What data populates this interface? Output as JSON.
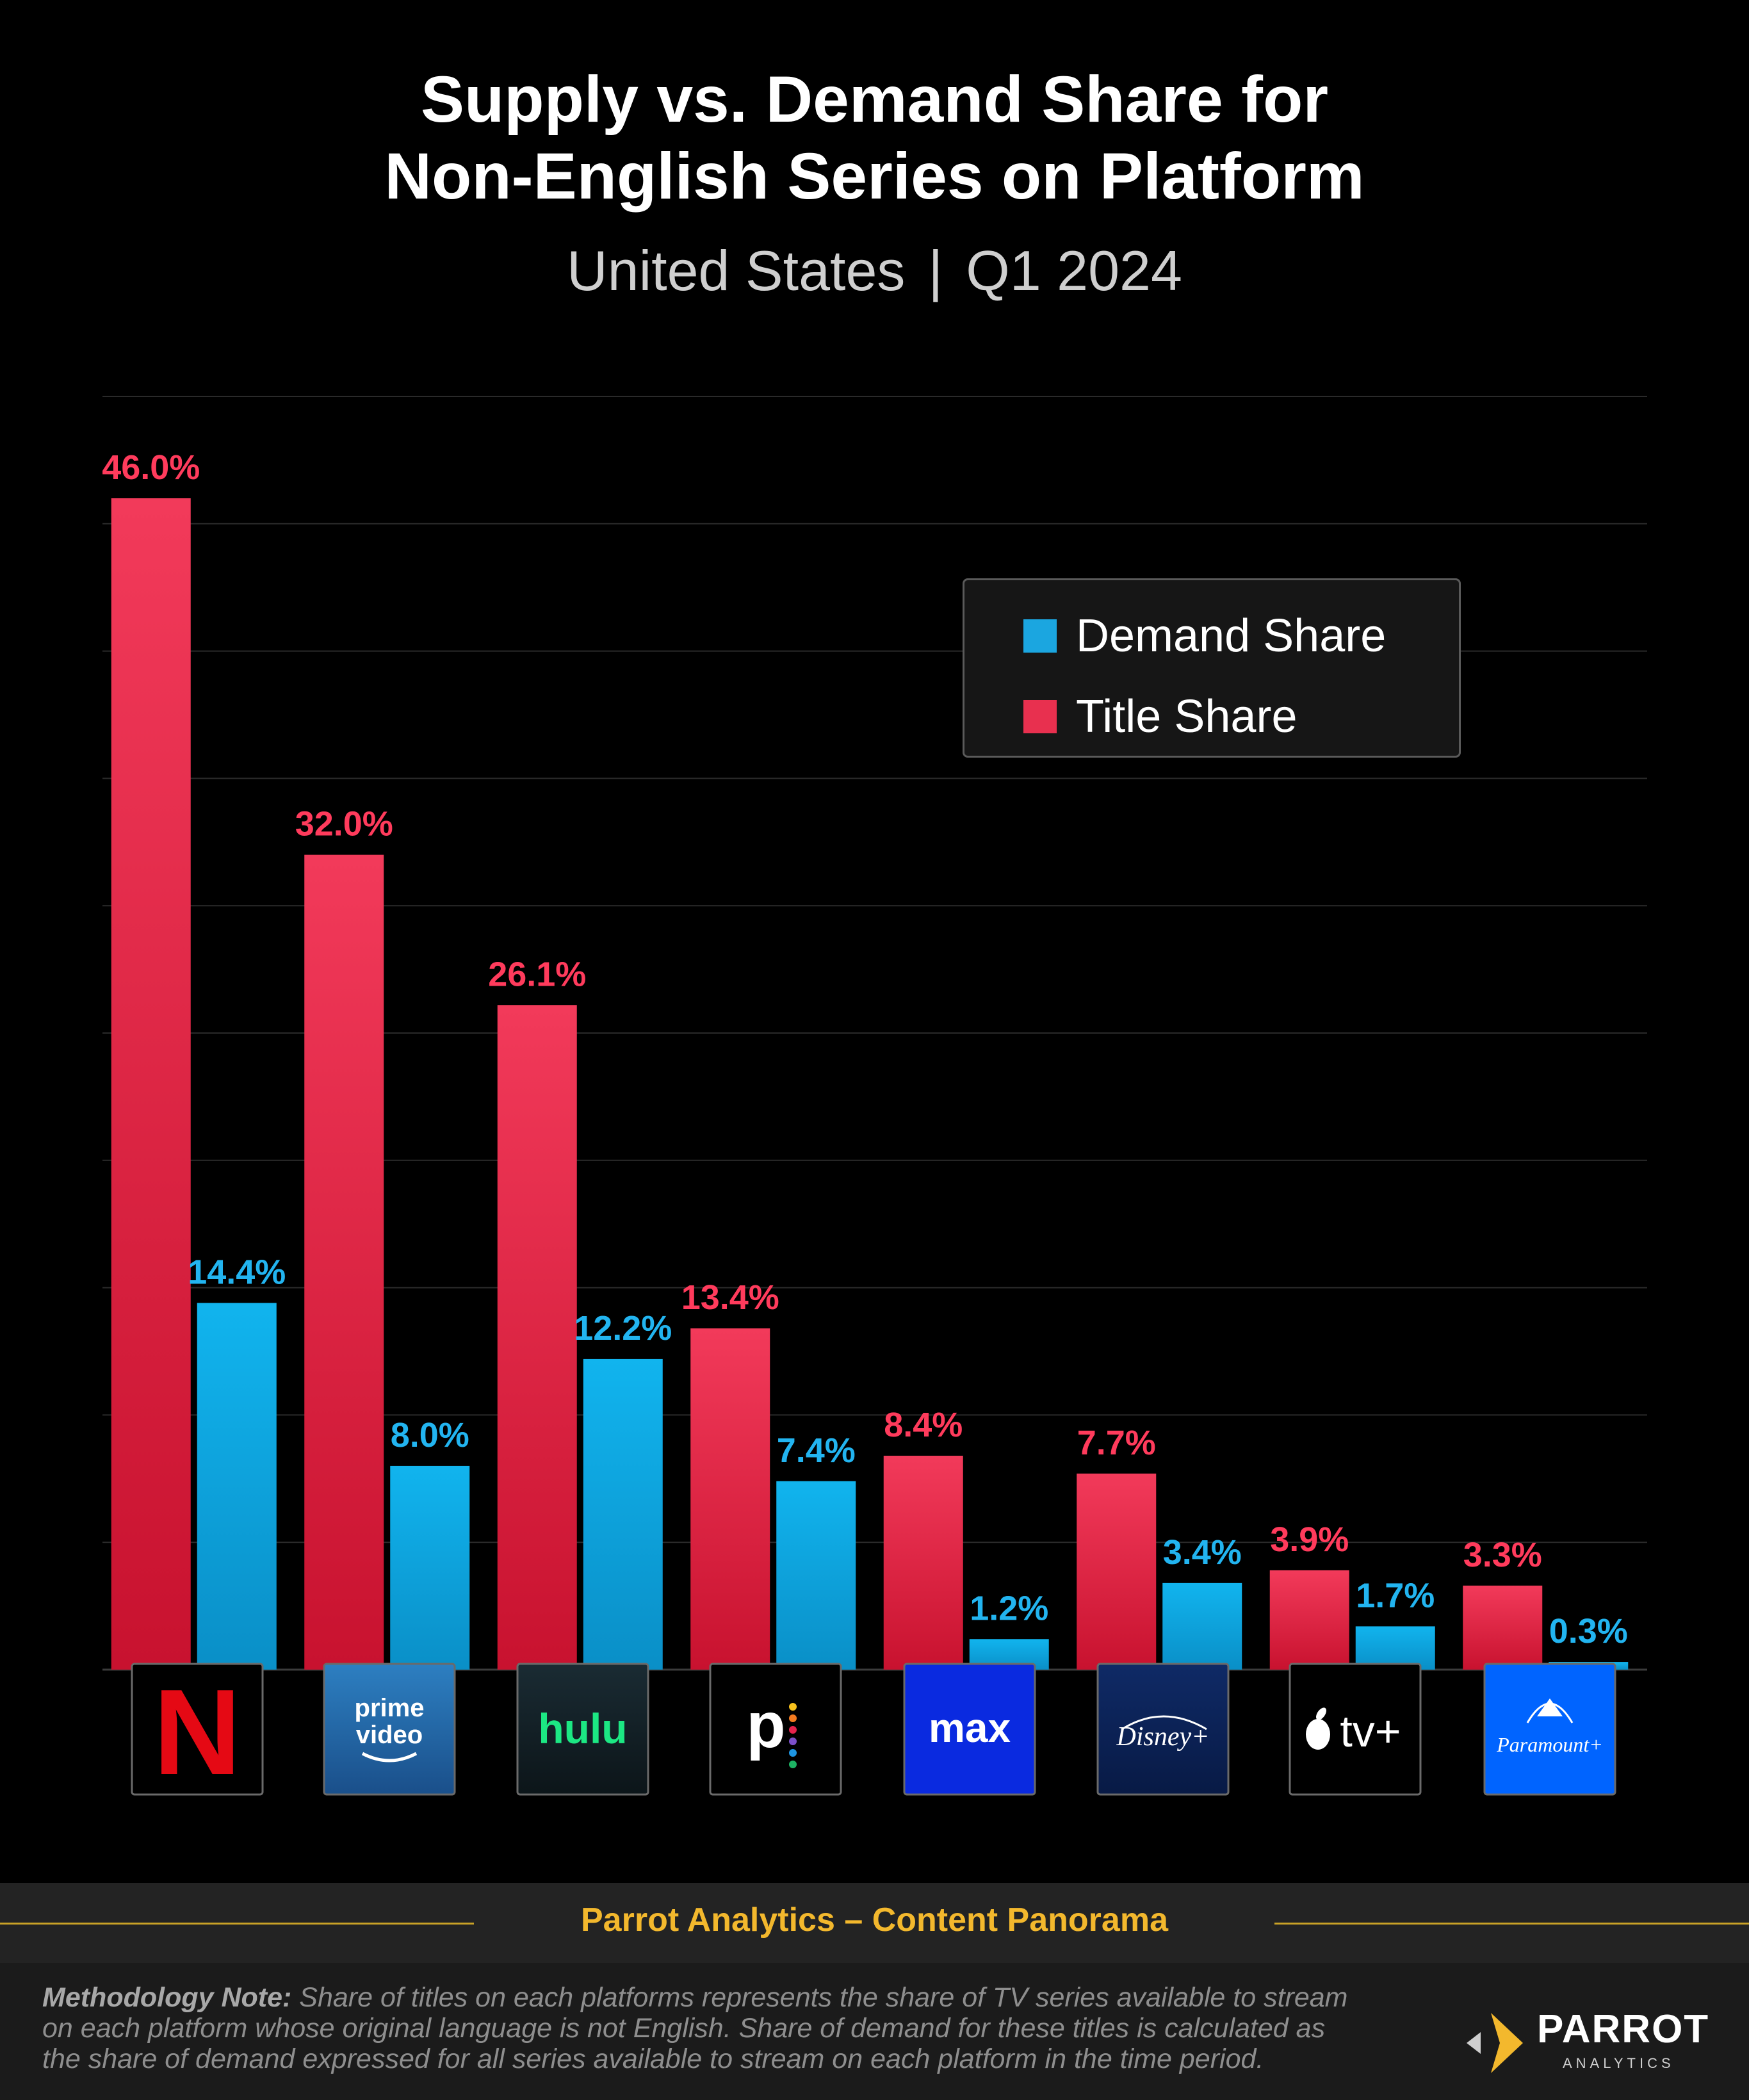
{
  "title": {
    "line1": "Supply vs. Demand Share for",
    "line2": "Non-English Series on Platform"
  },
  "subtitle": {
    "country": "United States",
    "period": "Q1 2024"
  },
  "legend": {
    "demand": "Demand Share",
    "title": "Title Share"
  },
  "logos": {
    "netflix": "N",
    "prime_line1": "prime",
    "prime_line2": "video",
    "hulu": "hulu",
    "peacock": "p",
    "max": "max",
    "disney": "Disney+",
    "appletv": "tv+",
    "paramount": "Paramount+"
  },
  "colors": {
    "title_share": "#e8304f",
    "demand_share": "#1ba6e0",
    "title_share_label": "#ff3b5c",
    "demand_share_label": "#22b4f0",
    "accent": "#f3b82d"
  },
  "chart_data": {
    "type": "bar",
    "categories": [
      "Netflix",
      "Prime Video",
      "Hulu",
      "Peacock",
      "Max",
      "Disney+",
      "Apple TV+",
      "Paramount+"
    ],
    "series": [
      {
        "name": "Title Share",
        "values": [
          46.0,
          32.0,
          26.1,
          13.4,
          8.4,
          7.7,
          3.9,
          3.3
        ]
      },
      {
        "name": "Demand Share",
        "values": [
          14.4,
          8.0,
          12.2,
          7.4,
          1.2,
          3.4,
          1.7,
          0.3
        ]
      }
    ],
    "value_suffix": "%",
    "ylim": [
      0,
      50
    ],
    "grid": true,
    "legend_position": "top-right"
  },
  "footer": {
    "source": "Parrot Analytics – Content Panorama",
    "note_lead": "Methodology Note:",
    "note_line1": "Share of titles on each platforms represents the share of TV series available to stream",
    "note_line2": "on each platform whose original language is not English.  Share of demand for these titles is calculated as",
    "note_line3": "the share of demand expressed for all series available to stream on each platform in the time period.",
    "brand_name": "PARROT",
    "brand_sub": "ANALYTICS"
  }
}
